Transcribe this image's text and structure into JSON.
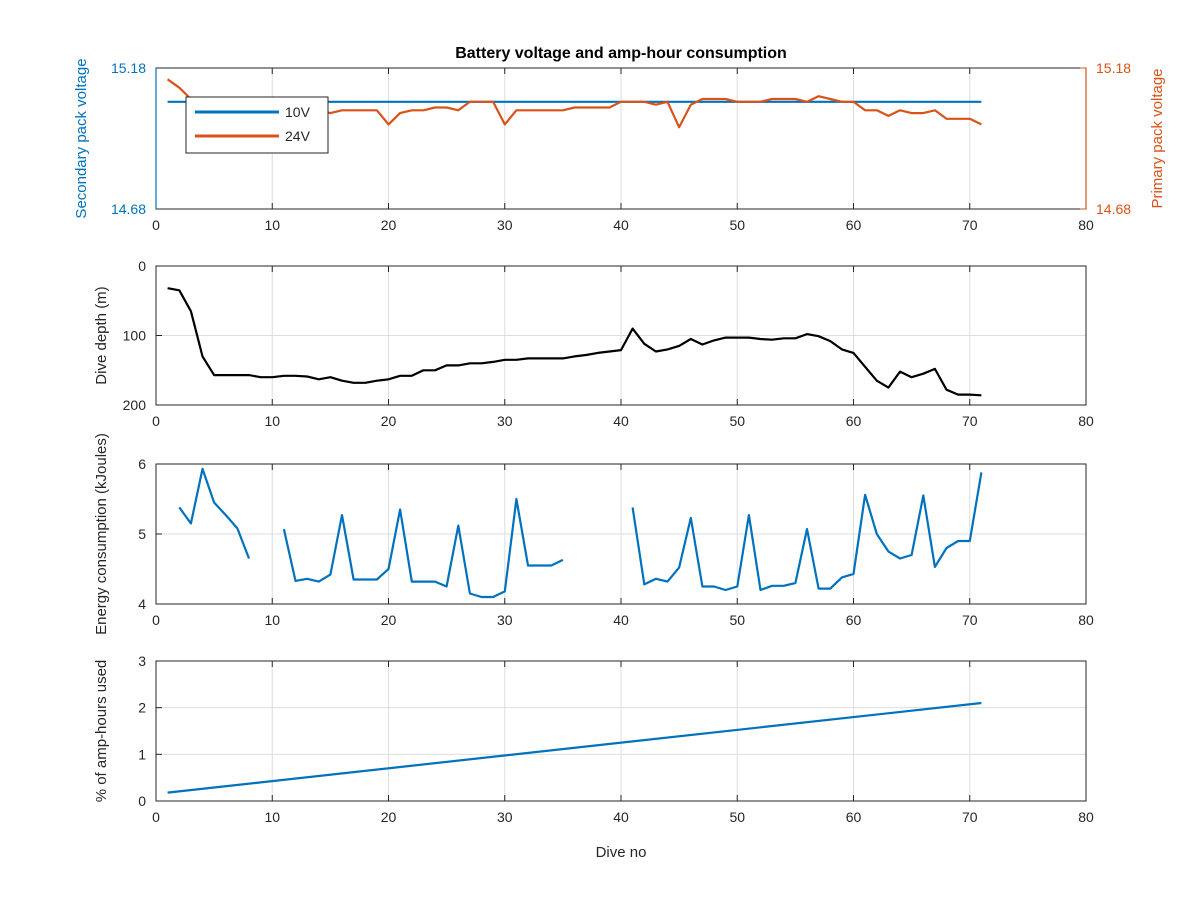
{
  "figure": {
    "title": "Battery voltage and amp-hour consumption",
    "xlabel": "Dive no"
  },
  "colors": {
    "blue": "#0072BD",
    "orange": "#D95319",
    "black": "#000000",
    "axis": "#262626",
    "grid": "#dedede"
  },
  "chart_data": [
    {
      "type": "line",
      "title": "Battery voltage and amp-hour consumption",
      "xlabel": "",
      "ylabel": "Secondary pack voltage",
      "ylabel_right": "Primary pack voltage",
      "xlim": [
        0,
        80
      ],
      "ylim": [
        14.68,
        15.18
      ],
      "ylim_right": [
        14.68,
        15.18
      ],
      "xticks": [
        0,
        10,
        20,
        30,
        40,
        50,
        60,
        70,
        80
      ],
      "yticks": [
        14.68,
        15.18
      ],
      "ytick_labels": [
        "14.68",
        "15.18"
      ],
      "yticks_right": [
        14.68,
        15.18
      ],
      "ytick_labels_right": [
        "14.68",
        "15.18"
      ],
      "grid": true,
      "legend": {
        "placement": "top-left",
        "entries": [
          "10V",
          "24V"
        ]
      },
      "series": [
        {
          "name": "10V",
          "color": "#0072BD",
          "axis": "left",
          "x": [
            1,
            71
          ],
          "y": [
            15.06,
            15.06
          ]
        },
        {
          "name": "24V",
          "color": "#D95319",
          "axis": "right",
          "x": [
            1,
            2,
            3,
            4,
            5,
            6,
            7,
            8,
            9,
            10,
            11,
            12,
            13,
            14,
            15,
            16,
            17,
            18,
            19,
            20,
            21,
            22,
            23,
            24,
            25,
            26,
            27,
            28,
            29,
            30,
            31,
            32,
            33,
            34,
            35,
            36,
            37,
            38,
            39,
            40,
            41,
            42,
            43,
            44,
            45,
            46,
            47,
            48,
            49,
            50,
            51,
            52,
            53,
            54,
            55,
            56,
            57,
            58,
            59,
            60,
            61,
            62,
            63,
            64,
            65,
            66,
            67,
            68,
            69,
            70,
            71
          ],
          "y": [
            15.14,
            15.11,
            15.07,
            15.04,
            14.9,
            14.89,
            15.01,
            15.02,
            15.02,
            15.02,
            15.03,
            15.03,
            15.03,
            15.03,
            15.02,
            15.03,
            15.03,
            15.03,
            15.03,
            14.98,
            15.02,
            15.03,
            15.03,
            15.04,
            15.04,
            15.03,
            15.06,
            15.06,
            15.06,
            14.98,
            15.03,
            15.03,
            15.03,
            15.03,
            15.03,
            15.04,
            15.04,
            15.04,
            15.04,
            15.06,
            15.06,
            15.06,
            15.05,
            15.06,
            14.97,
            15.05,
            15.07,
            15.07,
            15.07,
            15.06,
            15.06,
            15.06,
            15.07,
            15.07,
            15.07,
            15.06,
            15.08,
            15.07,
            15.06,
            15.06,
            15.03,
            15.03,
            15.01,
            15.03,
            15.02,
            15.02,
            15.03,
            15.0,
            15.0,
            15.0,
            14.98
          ]
        }
      ]
    },
    {
      "type": "line",
      "ylabel": "Dive depth (m)",
      "xlim": [
        0,
        80
      ],
      "ylim": [
        0,
        200
      ],
      "y_reversed": true,
      "xticks": [
        0,
        10,
        20,
        30,
        40,
        50,
        60,
        70,
        80
      ],
      "yticks": [
        0,
        100,
        200
      ],
      "grid": true,
      "series": [
        {
          "color": "#000000",
          "x": [
            1,
            2,
            3,
            4,
            5,
            6,
            7,
            8,
            9,
            10,
            11,
            12,
            13,
            14,
            15,
            16,
            17,
            18,
            19,
            20,
            21,
            22,
            23,
            24,
            25,
            26,
            27,
            28,
            29,
            30,
            31,
            32,
            33,
            34,
            35,
            36,
            37,
            38,
            39,
            40,
            41,
            42,
            43,
            44,
            45,
            46,
            47,
            48,
            49,
            50,
            51,
            52,
            53,
            54,
            55,
            56,
            57,
            58,
            59,
            60,
            61,
            62,
            63,
            64,
            65,
            66,
            67,
            68,
            69,
            70,
            71
          ],
          "y": [
            32,
            35,
            65,
            130,
            157,
            157,
            157,
            157,
            160,
            160,
            158,
            158,
            159,
            163,
            160,
            165,
            168,
            168,
            165,
            163,
            158,
            158,
            150,
            150,
            143,
            143,
            140,
            140,
            138,
            135,
            135,
            133,
            133,
            133,
            133,
            130,
            128,
            125,
            123,
            121,
            90,
            112,
            123,
            120,
            115,
            105,
            113,
            107,
            103,
            103,
            103,
            105,
            106,
            104,
            104,
            98,
            101,
            108,
            120,
            125,
            145,
            165,
            175,
            152,
            160,
            155,
            148,
            178,
            185,
            185,
            186
          ]
        }
      ]
    },
    {
      "type": "line",
      "ylabel": "Energy consumption (kJoules)",
      "xlim": [
        0,
        80
      ],
      "ylim": [
        4,
        6
      ],
      "xticks": [
        0,
        10,
        20,
        30,
        40,
        50,
        60,
        70,
        80
      ],
      "yticks": [
        4,
        5,
        6
      ],
      "grid": true,
      "series": [
        {
          "color": "#0072BD",
          "x": [
            2,
            3,
            4,
            5,
            6,
            7,
            8,
            null,
            11,
            12,
            13,
            14,
            15,
            16,
            17,
            18,
            19,
            20,
            21,
            22,
            23,
            24,
            25,
            26,
            27,
            28,
            29,
            30,
            31,
            32,
            33,
            34,
            35,
            null,
            41,
            42,
            43,
            44,
            45,
            46,
            47,
            48,
            49,
            50,
            51,
            52,
            53,
            54,
            55,
            56,
            57,
            58,
            59,
            60,
            61,
            62,
            63,
            64,
            65,
            66,
            67,
            68,
            69,
            70,
            71
          ],
          "y": [
            5.38,
            5.15,
            5.93,
            5.45,
            5.27,
            5.08,
            4.65,
            null,
            5.07,
            4.33,
            4.36,
            4.32,
            4.42,
            5.27,
            4.35,
            4.35,
            4.35,
            4.5,
            5.35,
            4.32,
            4.32,
            4.32,
            4.25,
            5.12,
            4.15,
            4.1,
            4.1,
            4.18,
            5.5,
            4.55,
            4.55,
            4.55,
            4.63,
            null,
            5.38,
            4.28,
            4.36,
            4.32,
            4.52,
            5.23,
            4.25,
            4.25,
            4.2,
            4.25,
            5.27,
            4.2,
            4.26,
            4.26,
            4.3,
            5.07,
            4.22,
            4.22,
            4.38,
            4.43,
            5.56,
            5.0,
            4.75,
            4.65,
            4.7,
            5.55,
            4.53,
            4.8,
            4.9,
            4.9,
            5.88
          ]
        }
      ]
    },
    {
      "type": "line",
      "ylabel": "% of amp-hours used",
      "xlabel": "Dive no",
      "xlim": [
        0,
        80
      ],
      "ylim": [
        0,
        3
      ],
      "xticks": [
        0,
        10,
        20,
        30,
        40,
        50,
        60,
        70,
        80
      ],
      "yticks": [
        0,
        1,
        2,
        3
      ],
      "grid": true,
      "series": [
        {
          "color": "#0072BD",
          "x": [
            1,
            71
          ],
          "y": [
            0.18,
            2.1
          ]
        }
      ]
    }
  ]
}
